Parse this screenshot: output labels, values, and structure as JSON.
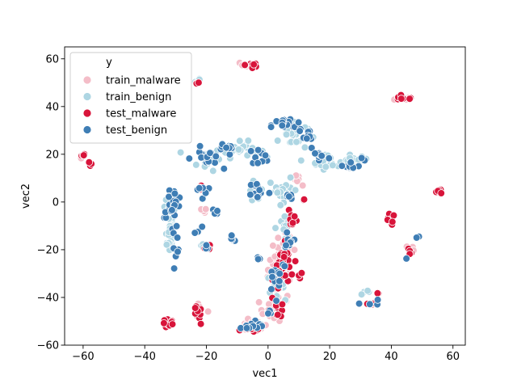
{
  "chart_data": {
    "type": "scatter",
    "xlabel": "vec1",
    "ylabel": "vec2",
    "xlim": [
      -66,
      64
    ],
    "ylim": [
      -60,
      65
    ],
    "xticks": [
      -60,
      -40,
      -20,
      0,
      20,
      40,
      60
    ],
    "yticks": [
      -60,
      -40,
      -20,
      0,
      20,
      40,
      60
    ],
    "legend": {
      "title": "y",
      "placement": "top-left"
    },
    "series": [
      {
        "name": "train_malware",
        "color": "#f4bdc8",
        "clusters": [
          {
            "x": 4,
            "y": -28,
            "sx": 2.5,
            "sy": 8,
            "n": 40
          },
          {
            "x": 2,
            "y": -45,
            "sx": 3,
            "sy": 3,
            "n": 20
          },
          {
            "x": -5,
            "y": -52,
            "sx": 3,
            "sy": 1.5,
            "n": 18
          },
          {
            "x": -22,
            "y": -45,
            "sx": 1.5,
            "sy": 2,
            "n": 6
          },
          {
            "x": -22,
            "y": -4,
            "sx": 1.5,
            "sy": 1.5,
            "n": 5
          },
          {
            "x": 10,
            "y": 8,
            "sx": 1.5,
            "sy": 2,
            "n": 6
          },
          {
            "x": 7,
            "y": -18,
            "sx": 1.5,
            "sy": 3,
            "n": 8
          },
          {
            "x": 44,
            "y": 43.5,
            "sx": 2,
            "sy": 0.5,
            "n": 6
          },
          {
            "x": 46,
            "y": -20,
            "sx": 0.8,
            "sy": 1.5,
            "n": 5
          },
          {
            "x": -60,
            "y": 20,
            "sx": 0.5,
            "sy": 1.5,
            "n": 4
          },
          {
            "x": -7,
            "y": 57,
            "sx": 1.2,
            "sy": 1.5,
            "n": 6
          }
        ]
      },
      {
        "name": "train_benign",
        "color": "#aed6e3",
        "clusters": [
          {
            "x": -32,
            "y": -12,
            "sx": 1.2,
            "sy": 6,
            "n": 28
          },
          {
            "x": -31,
            "y": 0,
            "sx": 1.5,
            "sy": 3,
            "n": 14
          },
          {
            "x": -20,
            "y": 18,
            "sx": 3,
            "sy": 3,
            "n": 18
          },
          {
            "x": -9,
            "y": 22,
            "sx": 4,
            "sy": 2,
            "n": 24
          },
          {
            "x": 8,
            "y": 28,
            "sx": 3,
            "sy": 4,
            "n": 26
          },
          {
            "x": 20,
            "y": 17,
            "sx": 4,
            "sy": 2,
            "n": 22
          },
          {
            "x": 29,
            "y": 17.5,
            "sx": 2,
            "sy": 0.8,
            "n": 12
          },
          {
            "x": 5,
            "y": 5,
            "sx": 3,
            "sy": 3,
            "n": 20
          },
          {
            "x": -4,
            "y": 5,
            "sx": 1.5,
            "sy": 2.5,
            "n": 10
          },
          {
            "x": 5,
            "y": -10,
            "sx": 2,
            "sy": 4,
            "n": 10
          },
          {
            "x": 2,
            "y": -35,
            "sx": 2,
            "sy": 3,
            "n": 10
          },
          {
            "x": 32,
            "y": -38,
            "sx": 1.5,
            "sy": 0.5,
            "n": 5
          },
          {
            "x": -21,
            "y": -19,
            "sx": 1.5,
            "sy": 1,
            "n": 5
          },
          {
            "x": -22,
            "y": 51,
            "sx": 1,
            "sy": 0.5,
            "n": 3
          },
          {
            "x": -4,
            "y": -52,
            "sx": 2,
            "sy": 1.2,
            "n": 8
          }
        ]
      },
      {
        "name": "test_malware",
        "color": "#d8143a",
        "clusters": [
          {
            "x": -60,
            "y": 20,
            "sx": 0.4,
            "sy": 1.2,
            "n": 5
          },
          {
            "x": -57.5,
            "y": 16,
            "sx": 0.5,
            "sy": 1,
            "n": 3
          },
          {
            "x": -23,
            "y": 50,
            "sx": 0.5,
            "sy": 0.4,
            "n": 3
          },
          {
            "x": -5,
            "y": 57.5,
            "sx": 1.5,
            "sy": 1.5,
            "n": 10
          },
          {
            "x": 44,
            "y": 43.5,
            "sx": 2.5,
            "sy": 0.5,
            "n": 10
          },
          {
            "x": 56,
            "y": 4.5,
            "sx": 1.5,
            "sy": 0.7,
            "n": 6
          },
          {
            "x": 39.5,
            "y": -7.5,
            "sx": 1,
            "sy": 1.5,
            "n": 10
          },
          {
            "x": 46,
            "y": -21,
            "sx": 0.6,
            "sy": 1.2,
            "n": 5
          },
          {
            "x": 33,
            "y": -43,
            "sx": 1.5,
            "sy": 0.5,
            "n": 5
          },
          {
            "x": 35.5,
            "y": -38.5,
            "sx": 0.5,
            "sy": 0.4,
            "n": 2
          },
          {
            "x": -32,
            "y": -51,
            "sx": 1.5,
            "sy": 1.2,
            "n": 10
          },
          {
            "x": -23,
            "y": -48,
            "sx": 1,
            "sy": 2.5,
            "n": 10
          },
          {
            "x": -5,
            "y": -53,
            "sx": 2,
            "sy": 1,
            "n": 12
          },
          {
            "x": 5,
            "y": -28,
            "sx": 2,
            "sy": 6,
            "n": 35
          },
          {
            "x": 10,
            "y": -31,
            "sx": 1,
            "sy": 0.8,
            "n": 4
          },
          {
            "x": 8,
            "y": -6,
            "sx": 1,
            "sy": 3,
            "n": 8
          },
          {
            "x": 3,
            "y": -45,
            "sx": 1.5,
            "sy": 2,
            "n": 8
          },
          {
            "x": -19,
            "y": -19,
            "sx": 1,
            "sy": 0.8,
            "n": 4
          },
          {
            "x": -22,
            "y": 5.5,
            "sx": 0.7,
            "sy": 0.7,
            "n": 4
          },
          {
            "x": 12,
            "y": 1,
            "sx": 0.5,
            "sy": 0.5,
            "n": 2
          }
        ]
      },
      {
        "name": "test_benign",
        "color": "#3f7eb5",
        "clusters": [
          {
            "x": -31,
            "y": 0,
            "sx": 2,
            "sy": 4,
            "n": 22
          },
          {
            "x": -30,
            "y": -15,
            "sx": 1,
            "sy": 4,
            "n": 10
          },
          {
            "x": -20,
            "y": 18,
            "sx": 3,
            "sy": 3,
            "n": 16
          },
          {
            "x": -14,
            "y": 23,
            "sx": 2,
            "sy": 1,
            "n": 8
          },
          {
            "x": -3,
            "y": 19,
            "sx": 2,
            "sy": 2,
            "n": 10
          },
          {
            "x": -22,
            "y": 5,
            "sx": 1.5,
            "sy": 2,
            "n": 8
          },
          {
            "x": -23,
            "y": -12,
            "sx": 1,
            "sy": 1,
            "n": 3
          },
          {
            "x": -20,
            "y": -19,
            "sx": 1,
            "sy": 0.8,
            "n": 4
          },
          {
            "x": -17,
            "y": -4,
            "sx": 1,
            "sy": 1,
            "n": 4
          },
          {
            "x": -12,
            "y": -16,
            "sx": 1.2,
            "sy": 1.5,
            "n": 4
          },
          {
            "x": 6,
            "y": 32,
            "sx": 3,
            "sy": 2,
            "n": 18
          },
          {
            "x": 13,
            "y": 27,
            "sx": 2,
            "sy": 3,
            "n": 10
          },
          {
            "x": 17,
            "y": 19,
            "sx": 2,
            "sy": 2,
            "n": 8
          },
          {
            "x": 26,
            "y": 15,
            "sx": 2.5,
            "sy": 1.5,
            "n": 8
          },
          {
            "x": 31,
            "y": 18,
            "sx": 0.8,
            "sy": 0.8,
            "n": 2
          },
          {
            "x": -3,
            "y": 5,
            "sx": 2,
            "sy": 2.5,
            "n": 12
          },
          {
            "x": 7,
            "y": 2,
            "sx": 1.5,
            "sy": 1.5,
            "n": 6
          },
          {
            "x": 7,
            "y": -15,
            "sx": 1.2,
            "sy": 3,
            "n": 8
          },
          {
            "x": 3,
            "y": -30,
            "sx": 2,
            "sy": 5,
            "n": 14
          },
          {
            "x": -3,
            "y": -24,
            "sx": 1,
            "sy": 0.8,
            "n": 3
          },
          {
            "x": -4,
            "y": -52,
            "sx": 2,
            "sy": 1.5,
            "n": 10
          },
          {
            "x": -7,
            "y": -53,
            "sx": 0.8,
            "sy": 0.8,
            "n": 3
          },
          {
            "x": 0,
            "y": -47,
            "sx": 1.2,
            "sy": 1,
            "n": 3
          },
          {
            "x": 33,
            "y": -42,
            "sx": 2,
            "sy": 1.2,
            "n": 4
          },
          {
            "x": 48,
            "y": -14.5,
            "sx": 1,
            "sy": 0.5,
            "n": 2
          },
          {
            "x": 45,
            "y": -23.5,
            "sx": 0.4,
            "sy": 0.4,
            "n": 1
          }
        ]
      }
    ]
  }
}
